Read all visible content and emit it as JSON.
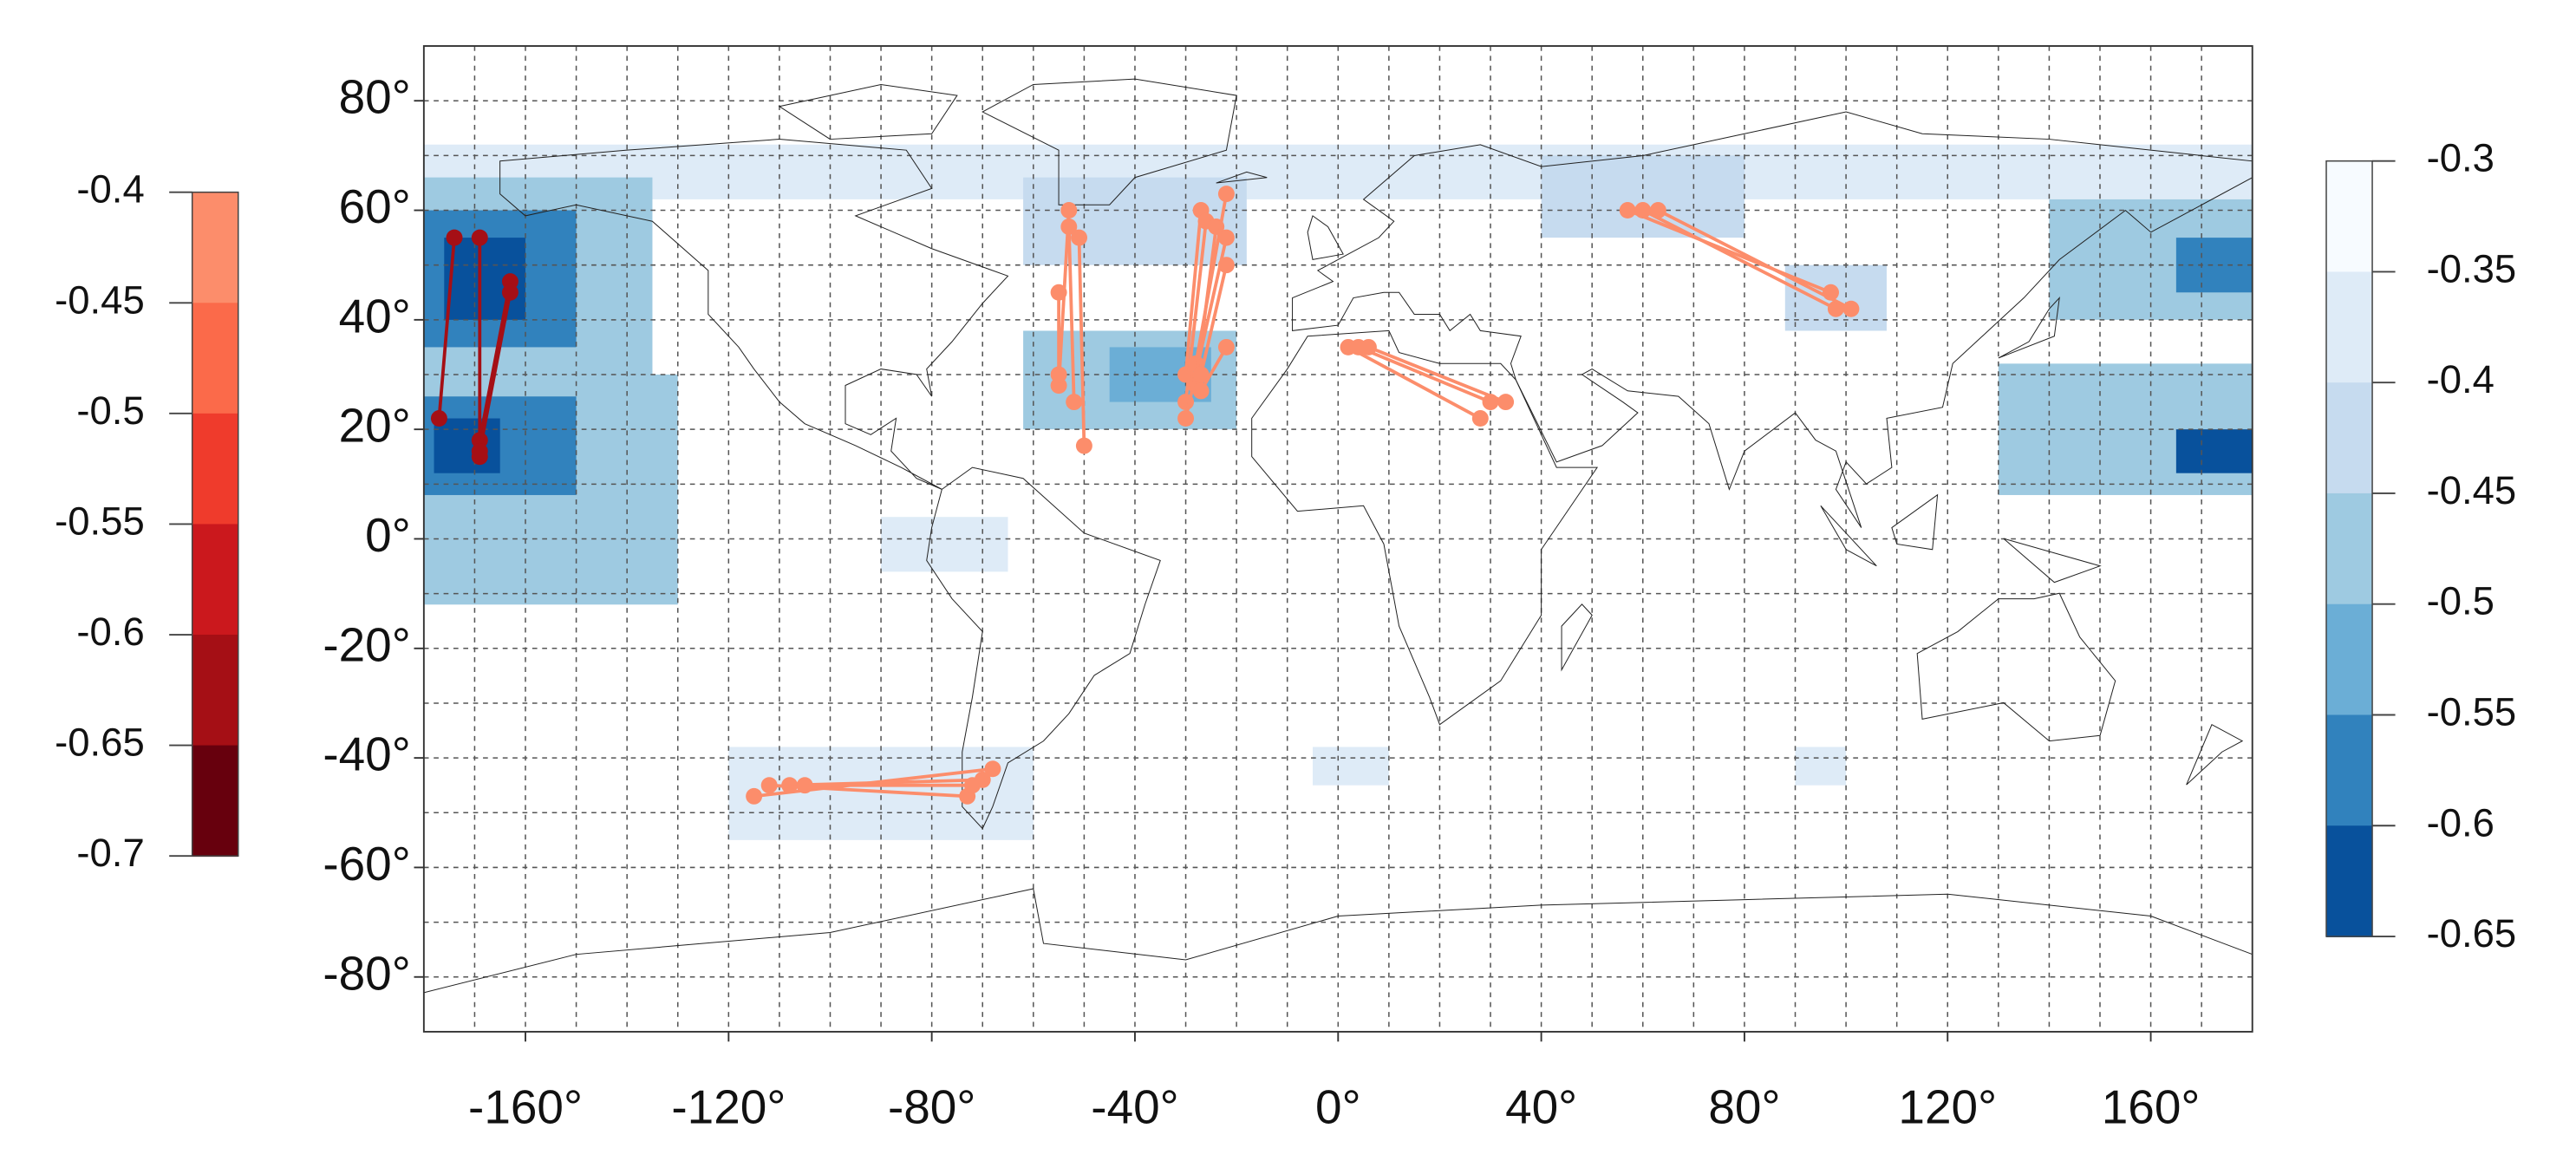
{
  "chart_data": {
    "type": "map",
    "xlim": [
      -180,
      180
    ],
    "ylim": [
      -90,
      90
    ],
    "xticks": [
      {
        "value": -160,
        "label": "-160°"
      },
      {
        "value": -120,
        "label": "-120°"
      },
      {
        "value": -80,
        "label": "-80°"
      },
      {
        "value": -40,
        "label": "-40°"
      },
      {
        "value": 0,
        "label": "0°"
      },
      {
        "value": 40,
        "label": "40°"
      },
      {
        "value": 80,
        "label": "80°"
      },
      {
        "value": 120,
        "label": "120°"
      },
      {
        "value": 160,
        "label": "160°"
      }
    ],
    "yticks": [
      {
        "value": -80,
        "label": "-80°"
      },
      {
        "value": -60,
        "label": "-60°"
      },
      {
        "value": -40,
        "label": "-40°"
      },
      {
        "value": -20,
        "label": "-20°"
      },
      {
        "value": 0,
        "label": "0°"
      },
      {
        "value": 20,
        "label": "20°"
      },
      {
        "value": 40,
        "label": "40°"
      },
      {
        "value": 60,
        "label": "60°"
      },
      {
        "value": 80,
        "label": "80°"
      }
    ],
    "grid": true,
    "grid_step": 10,
    "field_scale": {
      "levels": [
        -0.3,
        -0.35,
        -0.4,
        -0.45,
        -0.5,
        -0.55,
        -0.6,
        -0.65
      ],
      "colors": [
        "#f7fbff",
        "#deebf7",
        "#c6dbef",
        "#9ecae1",
        "#6baed6",
        "#3182bd",
        "#08519c"
      ]
    },
    "field": [
      {
        "lon": [
          -180,
          180
        ],
        "lat": [
          62,
          72
        ],
        "value": -0.37
      },
      {
        "lon": [
          -180,
          -135
        ],
        "lat": [
          28,
          66
        ],
        "value": -0.47
      },
      {
        "lon": [
          -180,
          -130
        ],
        "lat": [
          -12,
          30
        ],
        "value": -0.46
      },
      {
        "lon": [
          -180,
          -150
        ],
        "lat": [
          35,
          60
        ],
        "value": -0.56
      },
      {
        "lon": [
          -176,
          -160
        ],
        "lat": [
          40,
          55
        ],
        "value": -0.62
      },
      {
        "lon": [
          -180,
          -150
        ],
        "lat": [
          8,
          26
        ],
        "value": -0.57
      },
      {
        "lon": [
          -178,
          -165
        ],
        "lat": [
          12,
          22
        ],
        "value": -0.62
      },
      {
        "lon": [
          140,
          180
        ],
        "lat": [
          40,
          62
        ],
        "value": -0.5
      },
      {
        "lon": [
          165,
          180
        ],
        "lat": [
          45,
          55
        ],
        "value": -0.57
      },
      {
        "lon": [
          130,
          180
        ],
        "lat": [
          8,
          32
        ],
        "value": -0.47
      },
      {
        "lon": [
          165,
          180
        ],
        "lat": [
          12,
          20
        ],
        "value": -0.62
      },
      {
        "lon": [
          -62,
          -18
        ],
        "lat": [
          50,
          66
        ],
        "value": -0.44
      },
      {
        "lon": [
          -62,
          -20
        ],
        "lat": [
          20,
          38
        ],
        "value": -0.49
      },
      {
        "lon": [
          -45,
          -25
        ],
        "lat": [
          25,
          35
        ],
        "value": -0.55
      },
      {
        "lon": [
          40,
          80
        ],
        "lat": [
          55,
          70
        ],
        "value": -0.42
      },
      {
        "lon": [
          88,
          108
        ],
        "lat": [
          38,
          50
        ],
        "value": -0.45
      },
      {
        "lon": [
          -120,
          -60
        ],
        "lat": [
          -55,
          -38
        ],
        "value": -0.38
      },
      {
        "lon": [
          -90,
          -65
        ],
        "lat": [
          -6,
          4
        ],
        "value": -0.38
      },
      {
        "lon": [
          -5,
          10
        ],
        "lat": [
          -45,
          -38
        ],
        "value": -0.37
      },
      {
        "lon": [
          90,
          100
        ],
        "lat": [
          -45,
          -38
        ],
        "value": -0.37
      }
    ],
    "link_scale": {
      "levels": [
        -0.4,
        -0.45,
        -0.5,
        -0.55,
        -0.6,
        -0.65,
        -0.7
      ],
      "colors": [
        "#fc8d6b",
        "#fb6a4a",
        "#ef3b2c",
        "#cb181d",
        "#a50f15",
        "#67000d"
      ]
    },
    "links": [
      {
        "from": [
          -174,
          55
        ],
        "to": [
          -177,
          22
        ],
        "value": -0.62
      },
      {
        "from": [
          -169,
          55
        ],
        "to": [
          -169,
          15
        ],
        "value": -0.62
      },
      {
        "from": [
          -163,
          47
        ],
        "to": [
          -169,
          18
        ],
        "value": -0.62
      },
      {
        "from": [
          -163,
          45
        ],
        "to": [
          -169,
          16
        ],
        "value": -0.62
      },
      {
        "from": [
          -53,
          60
        ],
        "to": [
          -55,
          28
        ],
        "value": -0.43
      },
      {
        "from": [
          -53,
          57
        ],
        "to": [
          -52,
          25
        ],
        "value": -0.43
      },
      {
        "from": [
          -51,
          55
        ],
        "to": [
          -50,
          17
        ],
        "value": -0.43
      },
      {
        "from": [
          -55,
          45
        ],
        "to": [
          -55,
          30
        ],
        "value": -0.43
      },
      {
        "from": [
          -27,
          60
        ],
        "to": [
          -30,
          30
        ],
        "value": -0.43
      },
      {
        "from": [
          -26,
          58
        ],
        "to": [
          -30,
          25
        ],
        "value": -0.43
      },
      {
        "from": [
          -24,
          57
        ],
        "to": [
          -28,
          28
        ],
        "value": -0.43
      },
      {
        "from": [
          -22,
          63
        ],
        "to": [
          -28,
          32
        ],
        "value": -0.43
      },
      {
        "from": [
          -22,
          55
        ],
        "to": [
          -30,
          22
        ],
        "value": -0.43
      },
      {
        "from": [
          -22,
          50
        ],
        "to": [
          -27,
          30
        ],
        "value": -0.43
      },
      {
        "from": [
          -22,
          35
        ],
        "to": [
          -27,
          27
        ],
        "value": -0.43
      },
      {
        "from": [
          2,
          35
        ],
        "to": [
          28,
          22
        ],
        "value": -0.43
      },
      {
        "from": [
          4,
          35
        ],
        "to": [
          30,
          25
        ],
        "value": -0.43
      },
      {
        "from": [
          6,
          35
        ],
        "to": [
          33,
          25
        ],
        "value": -0.43
      },
      {
        "from": [
          57,
          60
        ],
        "to": [
          97,
          45
        ],
        "value": -0.43
      },
      {
        "from": [
          60,
          60
        ],
        "to": [
          98,
          42
        ],
        "value": -0.43
      },
      {
        "from": [
          63,
          60
        ],
        "to": [
          101,
          42
        ],
        "value": -0.43
      },
      {
        "from": [
          -68,
          -42
        ],
        "to": [
          -115,
          -47
        ],
        "value": -0.43
      },
      {
        "from": [
          -70,
          -44
        ],
        "to": [
          -108,
          -45
        ],
        "value": -0.43
      },
      {
        "from": [
          -73,
          -47
        ],
        "to": [
          -112,
          -45
        ],
        "value": -0.43
      },
      {
        "from": [
          -72,
          -45
        ],
        "to": [
          -105,
          -45
        ],
        "value": -0.43
      }
    ]
  }
}
